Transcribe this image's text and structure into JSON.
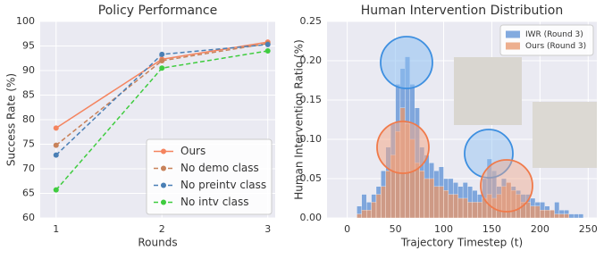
{
  "chart_data": [
    {
      "type": "line",
      "title": "Policy Performance",
      "x_label": "Rounds",
      "y_label": "Success Rate (%)",
      "x": [
        1,
        2,
        3
      ],
      "xlim": [
        0.85,
        3.07
      ],
      "xticks": [
        1,
        2,
        3
      ],
      "ylim": [
        60,
        100
      ],
      "yticks": [
        60,
        65,
        70,
        75,
        80,
        85,
        90,
        95,
        100
      ],
      "grid": true,
      "legend": "lower right",
      "series": [
        {
          "name": "Ours",
          "color": "#f4845f",
          "linestyle": "solid",
          "values": [
            78.3,
            92.3,
            95.8
          ]
        },
        {
          "name": "No demo class",
          "color": "#c8825a",
          "linestyle": "dashed",
          "values": [
            74.8,
            92.0,
            95.5
          ]
        },
        {
          "name": "No preintv class",
          "color": "#4a7fb5",
          "linestyle": "dashed",
          "values": [
            72.8,
            93.3,
            95.3
          ]
        },
        {
          "name": "No intv class",
          "color": "#3fcc3f",
          "linestyle": "dashed",
          "values": [
            65.7,
            90.5,
            94.0
          ]
        }
      ]
    },
    {
      "type": "histogram",
      "title": "Human Intervention Distribution",
      "x_label": "Trajectory Timestep (t)",
      "y_label": "Human Intervention Ratio (%)",
      "xlim": [
        -21,
        259
      ],
      "xticks": [
        0,
        50,
        100,
        150,
        200,
        250
      ],
      "ylim": [
        0,
        0.25
      ],
      "yticks": [
        {
          "value": 0,
          "label": "0.00"
        },
        0.05,
        {
          "value": 0.1,
          "label": "0.10"
        },
        0.15,
        {
          "value": 0.2,
          "label": "0.20"
        },
        0.25
      ],
      "grid": true,
      "legend": "upper right",
      "bins": [
        10,
        15,
        20,
        25,
        30,
        35,
        40,
        45,
        50,
        55,
        60,
        65,
        70,
        75,
        80,
        85,
        90,
        95,
        100,
        105,
        110,
        115,
        120,
        125,
        130,
        135,
        140,
        145,
        150,
        155,
        160,
        165,
        170,
        175,
        180,
        185,
        190,
        195,
        200,
        205,
        210,
        215,
        220,
        225,
        230,
        235,
        240,
        245
      ],
      "series": [
        {
          "name": "IWR (Round 3)",
          "color": "#5b8fd4",
          "values": [
            0.015,
            0.03,
            0.02,
            0.03,
            0.04,
            0.06,
            0.09,
            0.12,
            0.17,
            0.19,
            0.205,
            0.17,
            0.14,
            0.09,
            0.08,
            0.07,
            0.06,
            0.065,
            0.05,
            0.05,
            0.045,
            0.04,
            0.045,
            0.04,
            0.035,
            0.03,
            0.05,
            0.075,
            0.06,
            0.04,
            0.05,
            0.045,
            0.04,
            0.035,
            0.03,
            0.03,
            0.025,
            0.02,
            0.02,
            0.015,
            0.01,
            0.02,
            0.01,
            0.01,
            0.005,
            0.005,
            0.005
          ]
        },
        {
          "name": "Ours (Round 3)",
          "color": "#e8956a",
          "values": [
            0.005,
            0.01,
            0.01,
            0.02,
            0.03,
            0.04,
            0.06,
            0.08,
            0.11,
            0.14,
            0.12,
            0.1,
            0.07,
            0.06,
            0.05,
            0.05,
            0.04,
            0.04,
            0.035,
            0.03,
            0.03,
            0.025,
            0.025,
            0.02,
            0.02,
            0.02,
            0.025,
            0.03,
            0.025,
            0.03,
            0.04,
            0.045,
            0.035,
            0.03,
            0.02,
            0.02,
            0.015,
            0.015,
            0.01,
            0.01,
            0.01,
            0.005,
            0.005,
            0.005,
            0,
            0,
            0
          ]
        }
      ]
    }
  ]
}
